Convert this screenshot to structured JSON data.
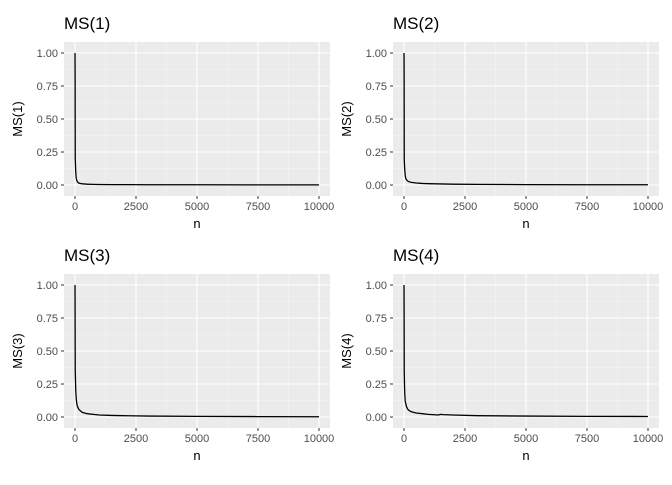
{
  "colors": {
    "panel_background": "#ebebeb",
    "major_grid": "#ffffff",
    "minor_grid": "#f5f5f5",
    "line": "#000000",
    "tick": "#333333",
    "tick_label": "#4d4d4d"
  },
  "chart_data": [
    {
      "type": "line",
      "title": "MS(1)",
      "xlabel": "n",
      "ylabel": "MS(1)",
      "xlim": [
        0,
        10000
      ],
      "ylim": [
        0,
        1
      ],
      "grid": true,
      "x_ticks": [
        0,
        2500,
        5000,
        7500,
        10000
      ],
      "x_tick_labels": [
        "0",
        "2500",
        "5000",
        "7500",
        "10000"
      ],
      "y_ticks": [
        0,
        0.25,
        0.5,
        0.75,
        1
      ],
      "y_tick_labels": [
        "0.00",
        "0.25",
        "0.50",
        "0.75",
        "1.00"
      ],
      "x": [
        1,
        5,
        10,
        20,
        30,
        50,
        75,
        100,
        150,
        200,
        300,
        500,
        750,
        1000,
        1500,
        2000,
        3000,
        5000,
        7500,
        10000
      ],
      "y": [
        1.0,
        0.8,
        0.2,
        0.15,
        0.1,
        0.05,
        0.035,
        0.025,
        0.015,
        0.012,
        0.009,
        0.006,
        0.005,
        0.004,
        0.003,
        0.003,
        0.002,
        0.002,
        0.001,
        0.001
      ]
    },
    {
      "type": "line",
      "title": "MS(2)",
      "xlabel": "n",
      "ylabel": "MS(2)",
      "xlim": [
        0,
        10000
      ],
      "ylim": [
        0,
        1
      ],
      "grid": true,
      "x_ticks": [
        0,
        2500,
        5000,
        7500,
        10000
      ],
      "x_tick_labels": [
        "0",
        "2500",
        "5000",
        "7500",
        "10000"
      ],
      "y_ticks": [
        0,
        0.25,
        0.5,
        0.75,
        1
      ],
      "y_tick_labels": [
        "0.00",
        "0.25",
        "0.50",
        "0.75",
        "1.00"
      ],
      "x": [
        1,
        5,
        10,
        20,
        30,
        50,
        75,
        100,
        150,
        200,
        300,
        500,
        750,
        1000,
        1500,
        2000,
        3000,
        5000,
        7500,
        10000
      ],
      "y": [
        1.0,
        0.85,
        0.2,
        0.15,
        0.12,
        0.07,
        0.05,
        0.04,
        0.03,
        0.025,
        0.02,
        0.015,
        0.012,
        0.01,
        0.008,
        0.006,
        0.005,
        0.003,
        0.002,
        0.002
      ]
    },
    {
      "type": "line",
      "title": "MS(3)",
      "xlabel": "n",
      "ylabel": "MS(3)",
      "xlim": [
        0,
        10000
      ],
      "ylim": [
        0,
        1
      ],
      "grid": true,
      "x_ticks": [
        0,
        2500,
        5000,
        7500,
        10000
      ],
      "x_tick_labels": [
        "0",
        "2500",
        "5000",
        "7500",
        "10000"
      ],
      "y_ticks": [
        0,
        0.25,
        0.5,
        0.75,
        1
      ],
      "y_tick_labels": [
        "0.00",
        "0.25",
        "0.50",
        "0.75",
        "1.00"
      ],
      "x": [
        1,
        5,
        10,
        20,
        30,
        50,
        75,
        100,
        150,
        200,
        300,
        500,
        750,
        1000,
        1500,
        2000,
        3000,
        5000,
        7500,
        10000
      ],
      "y": [
        1.0,
        0.7,
        0.35,
        0.28,
        0.2,
        0.14,
        0.1,
        0.08,
        0.06,
        0.05,
        0.035,
        0.025,
        0.02,
        0.015,
        0.012,
        0.01,
        0.007,
        0.005,
        0.003,
        0.002
      ]
    },
    {
      "type": "line",
      "title": "MS(4)",
      "xlabel": "n",
      "ylabel": "MS(4)",
      "xlim": [
        0,
        10000
      ],
      "ylim": [
        0,
        1
      ],
      "grid": true,
      "x_ticks": [
        0,
        2500,
        5000,
        7500,
        10000
      ],
      "x_tick_labels": [
        "0",
        "2500",
        "5000",
        "7500",
        "10000"
      ],
      "y_ticks": [
        0,
        0.25,
        0.5,
        0.75,
        1
      ],
      "y_tick_labels": [
        "0.00",
        "0.25",
        "0.50",
        "0.75",
        "1.00"
      ],
      "x": [
        1,
        5,
        10,
        20,
        30,
        50,
        75,
        100,
        150,
        200,
        300,
        500,
        750,
        1000,
        1400,
        1500,
        1600,
        2000,
        3000,
        5000,
        7500,
        10000
      ],
      "y": [
        1.0,
        0.75,
        0.35,
        0.25,
        0.18,
        0.12,
        0.1,
        0.08,
        0.06,
        0.05,
        0.04,
        0.03,
        0.025,
        0.02,
        0.015,
        0.02,
        0.018,
        0.015,
        0.01,
        0.007,
        0.005,
        0.004
      ]
    }
  ]
}
